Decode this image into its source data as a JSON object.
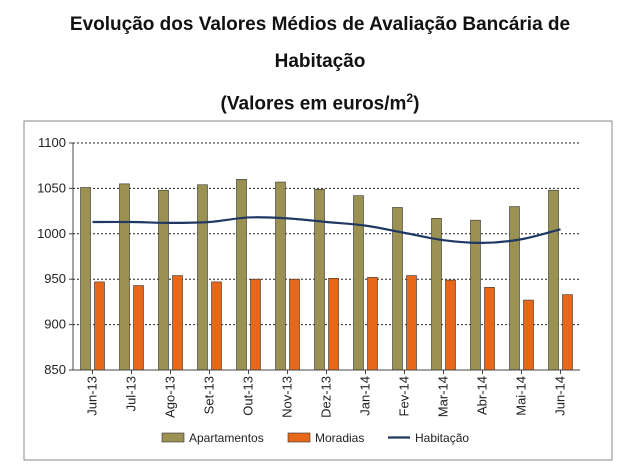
{
  "chart_data": {
    "type": "bar",
    "title_line1": "Evolução dos Valores Médios de Avaliação Bancária de",
    "title_line2": "Habitação",
    "subtitle": "(Valores em euros/m",
    "subtitle_sup": "2",
    "subtitle_end": ")",
    "categories": [
      "Jun-13",
      "Jul-13",
      "Ago-13",
      "Set-13",
      "Out-13",
      "Nov-13",
      "Dez-13",
      "Jan-14",
      "Fev-14",
      "Mar-14",
      "Abr-14",
      "Mai-14",
      "Jun-14"
    ],
    "ylim": [
      850,
      1100
    ],
    "yticks": [
      850,
      900,
      950,
      1000,
      1050,
      1100
    ],
    "grid": true,
    "legend_position": "bottom",
    "series": [
      {
        "name": "Apartamentos",
        "type": "bar",
        "color": "#9b9152",
        "values": [
          1051,
          1055,
          1048,
          1054,
          1060,
          1057,
          1049,
          1042,
          1029,
          1017,
          1015,
          1030,
          1048
        ]
      },
      {
        "name": "Moradias",
        "type": "bar",
        "color": "#e8681a",
        "values": [
          947,
          943,
          954,
          947,
          950,
          950,
          951,
          952,
          954,
          949,
          941,
          927,
          933
        ]
      },
      {
        "name": "Habitação",
        "type": "line",
        "color": "#1f3864",
        "values": [
          1013,
          1013,
          1012,
          1013,
          1018,
          1017,
          1013,
          1009,
          1001,
          993,
          990,
          994,
          1005
        ]
      }
    ]
  }
}
